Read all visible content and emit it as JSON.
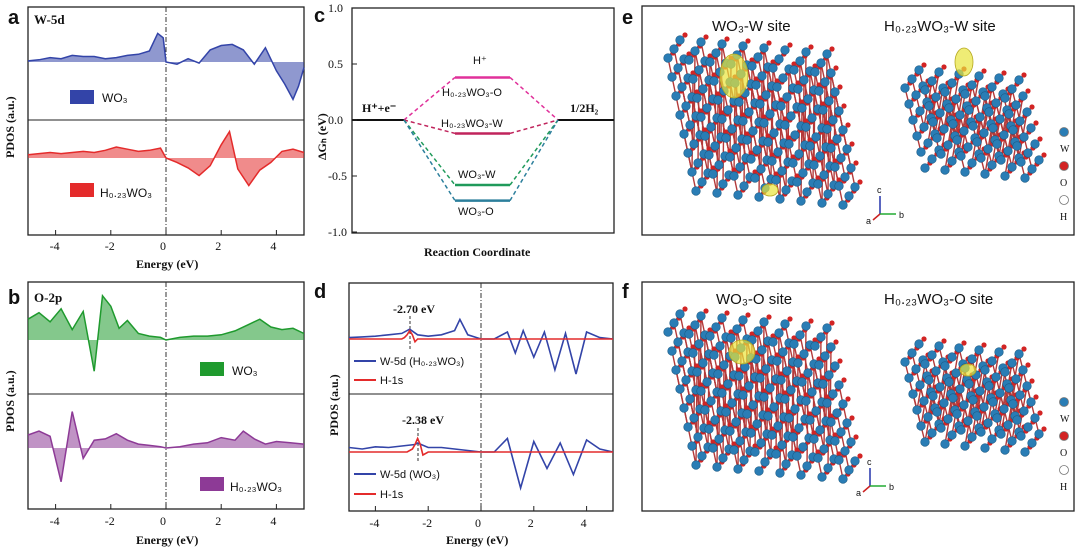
{
  "panels": {
    "a": {
      "letter": "a",
      "label": "W-5d",
      "legend1": "WO₃",
      "legend2": "H₀.₂₃WO₃",
      "ylabel": "PDOS (a.u.)",
      "xlabel": "Energy (eV)",
      "xticks": [
        "-4",
        "-2",
        "0",
        "2",
        "4"
      ]
    },
    "b": {
      "letter": "b",
      "label": "O-2p",
      "legend1": "WO₃",
      "legend2": "H₀.₂₃WO₃",
      "ylabel": "PDOS (a.u.)",
      "xlabel": "Energy (eV)",
      "xticks": [
        "-4",
        "-2",
        "0",
        "2",
        "4"
      ]
    },
    "c": {
      "letter": "c",
      "ylabel": "ΔGₕ (eV)",
      "xlabel": "Reaction Coordinate",
      "yticks": [
        "1.0",
        "0.5",
        "0.0",
        "-0.5",
        "-1.0"
      ],
      "left_label": "H⁺+e⁻",
      "right_label": "1/2H₂",
      "lbl_hplus": "H⁺",
      "lbl_hwo_o": "H₀.₂₃WO₃-O",
      "lbl_hwo_w": "H₀.₂₃WO₃-W",
      "lbl_wo_w": "WO₃-W",
      "lbl_wo_o": "WO₃-O"
    },
    "d": {
      "letter": "d",
      "ylabel": "PDOS (a.u.)",
      "xlabel": "Energy (eV)",
      "xticks": [
        "-4",
        "-2",
        "0",
        "2",
        "4"
      ],
      "ann_top": "-2.70 eV",
      "ann_bot": "-2.38 eV",
      "leg_top_w": "W-5d (H₀.₂₃WO₃)",
      "leg_top_h": "H-1s",
      "leg_bot_w": "W-5d (WO₃)",
      "leg_bot_h": "H-1s"
    },
    "e": {
      "letter": "e",
      "title_left": "WO₃-W site",
      "title_right": "H₀.₂₃WO₃-W site",
      "legend": [
        "W",
        "O",
        "H"
      ],
      "axes": [
        "c",
        "a",
        "b"
      ]
    },
    "f": {
      "letter": "f",
      "title_left": "WO₃-O site",
      "title_right": "H₀.₂₃WO₃-O site",
      "legend": [
        "W",
        "O",
        "H"
      ],
      "axes": [
        "c",
        "a",
        "b"
      ]
    }
  },
  "colors": {
    "wo3_w": "#3344a8",
    "hwo3_w": "#e42b2b",
    "wo3_o": "#1f9a2e",
    "hwo3_o": "#8d3a96",
    "w_atom": "#2a7db5",
    "o_atom": "#d22424",
    "iso": "#e8e43a",
    "magenta": "#e0309a",
    "green": "#1f9a5a",
    "teal": "#2c7f9c"
  },
  "chart_data": [
    {
      "panel": "a",
      "type": "area",
      "title": "W-5d",
      "xlabel": "Energy (eV)",
      "ylabel": "PDOS (a.u.)",
      "xlim": [
        -5,
        5
      ],
      "series": [
        {
          "name": "WO₃",
          "x": [
            -5,
            -4.6,
            -4.2,
            -3.8,
            -3.4,
            -3,
            -2.6,
            -2.2,
            -1.8,
            -1.4,
            -1,
            -0.6,
            -0.3,
            -0.1,
            0,
            0.4,
            0.8,
            1.2,
            1.6,
            2,
            2.4,
            2.8,
            3.2,
            3.6,
            4,
            4.3,
            4.6,
            4.8,
            5
          ],
          "y": [
            0.1,
            0.2,
            0.4,
            0.3,
            0.6,
            0.5,
            0.5,
            0.3,
            0.4,
            0.6,
            0.7,
            1.0,
            2.6,
            2.2,
            0,
            -0.2,
            0.3,
            -0.1,
            1.1,
            1.5,
            1.6,
            1.1,
            -0.2,
            1.3,
            -0.8,
            -2.0,
            -3.4,
            -2.2,
            -0.5
          ]
        },
        {
          "name": "H₀.₂₃WO₃",
          "x": [
            -5,
            -4.6,
            -4.2,
            -3.8,
            -3.4,
            -3,
            -2.6,
            -2.2,
            -1.8,
            -1.4,
            -1,
            -0.6,
            -0.2,
            0,
            0.4,
            0.8,
            1.2,
            1.6,
            2,
            2.3,
            2.6,
            3,
            3.4,
            3.8,
            4.2,
            4.6,
            5
          ],
          "y": [
            0.3,
            0.4,
            0.5,
            0.4,
            0.5,
            0.6,
            0.5,
            0.7,
            1.0,
            0.8,
            0.6,
            0.7,
            0.9,
            0,
            -0.4,
            -0.9,
            -1.6,
            -0.7,
            1.2,
            2.4,
            -1.0,
            -2.5,
            -1.1,
            -0.4,
            0.6,
            0.8,
            0.5
          ]
        }
      ]
    },
    {
      "panel": "b",
      "type": "area",
      "title": "O-2p",
      "xlabel": "Energy (eV)",
      "ylabel": "PDOS (a.u.)",
      "xlim": [
        -5,
        5
      ],
      "series": [
        {
          "name": "WO₃",
          "x": [
            -5,
            -4.6,
            -4.2,
            -3.8,
            -3.4,
            -3,
            -2.6,
            -2.3,
            -2,
            -1.7,
            -1.4,
            -1,
            -0.6,
            -0.2,
            0,
            0.5,
            1,
            1.5,
            2,
            2.5,
            3,
            3.4,
            3.8,
            4.2,
            4.6,
            5
          ],
          "y": [
            1.6,
            2.1,
            1.4,
            2.4,
            0.8,
            2.2,
            -2.4,
            3.4,
            2.6,
            0.9,
            1.5,
            0.5,
            0.3,
            0.2,
            0,
            0.2,
            0.3,
            0.3,
            0.4,
            0.7,
            1.2,
            1.6,
            1.0,
            0.8,
            0.9,
            0.5
          ]
        },
        {
          "name": "H₀.₂₃WO₃",
          "x": [
            -5,
            -4.6,
            -4.2,
            -3.8,
            -3.4,
            -3,
            -2.6,
            -2.2,
            -1.8,
            -1.4,
            -1,
            -0.6,
            -0.2,
            0,
            0.5,
            1,
            1.5,
            2,
            2.5,
            2.8,
            3.2,
            3.6,
            4,
            4.5,
            5
          ],
          "y": [
            1.0,
            1.3,
            0.9,
            -2.6,
            2.8,
            -0.8,
            0.6,
            0.7,
            1.1,
            0.6,
            0.3,
            0.2,
            0.1,
            0,
            0.1,
            0.3,
            0.4,
            0.8,
            0.6,
            1.3,
            0.7,
            0.3,
            0.5,
            0.4,
            0.3
          ]
        }
      ]
    },
    {
      "panel": "c",
      "type": "line",
      "xlabel": "Reaction Coordinate",
      "ylabel": "ΔGₕ (eV)",
      "ylim": [
        -1.0,
        1.0
      ],
      "series": [
        {
          "name": "H₀.₂₃WO₃-O",
          "y": [
            0,
            0.38,
            0
          ]
        },
        {
          "name": "H₀.₂₃WO₃-W",
          "y": [
            0,
            -0.12,
            0
          ]
        },
        {
          "name": "WO₃-W",
          "y": [
            0,
            -0.58,
            0
          ]
        },
        {
          "name": "WO₃-O",
          "y": [
            0,
            -0.72,
            0
          ]
        }
      ]
    },
    {
      "panel": "d",
      "type": "line",
      "xlabel": "Energy (eV)",
      "ylabel": "PDOS (a.u.)",
      "xlim": [
        -5,
        5
      ],
      "series": [
        {
          "name": "W-5d (H₀.₂₃WO₃)",
          "x": [
            -5,
            -4.5,
            -4,
            -3.5,
            -3,
            -2.7,
            -2.4,
            -2,
            -1.5,
            -1,
            -0.8,
            -0.5,
            0,
            0.5,
            1,
            1.3,
            1.6,
            2,
            2.4,
            2.8,
            3.2,
            3.6,
            4,
            4.5,
            5
          ],
          "y": [
            0.1,
            0.15,
            0.2,
            0.3,
            0.4,
            0.7,
            0.3,
            0.2,
            0.3,
            0.6,
            1.4,
            0.3,
            0,
            0,
            0.5,
            -1.0,
            0.6,
            -1.3,
            0.5,
            -2.2,
            0.4,
            -2.5,
            0.5,
            0.1,
            0
          ]
        },
        {
          "name": "H-1s",
          "x": [
            -5,
            -3,
            -2.9,
            -2.8,
            -2.7,
            -2.6,
            -2.5,
            -2.4,
            -2,
            0,
            5
          ],
          "y": [
            0,
            0,
            0.1,
            0.3,
            0.6,
            0.3,
            -0.2,
            0,
            0,
            0,
            0
          ]
        },
        {
          "name": "W-5d (WO₃)",
          "x": [
            -5,
            -4.5,
            -4,
            -3.5,
            -3,
            -2.5,
            -2.4,
            -2,
            -1.5,
            -1,
            -0.5,
            0,
            0.5,
            1,
            1.5,
            2,
            2.5,
            3,
            3.5,
            4,
            4.5,
            5
          ],
          "y": [
            0.3,
            0.2,
            0.35,
            0.3,
            0.4,
            0.5,
            0.6,
            0.3,
            0.3,
            0.2,
            0.1,
            0,
            0,
            0.9,
            -2.4,
            0.7,
            -1.1,
            0.6,
            -1.5,
            0.8,
            0.2,
            0
          ]
        },
        {
          "name": "H-1s",
          "x": [
            -5,
            -2.8,
            -2.6,
            -2.5,
            -2.4,
            -2.3,
            -2.2,
            -2,
            0,
            5
          ],
          "y": [
            0,
            0,
            0.2,
            0.5,
            0.9,
            0.5,
            -0.2,
            0,
            0,
            0
          ]
        }
      ]
    }
  ]
}
